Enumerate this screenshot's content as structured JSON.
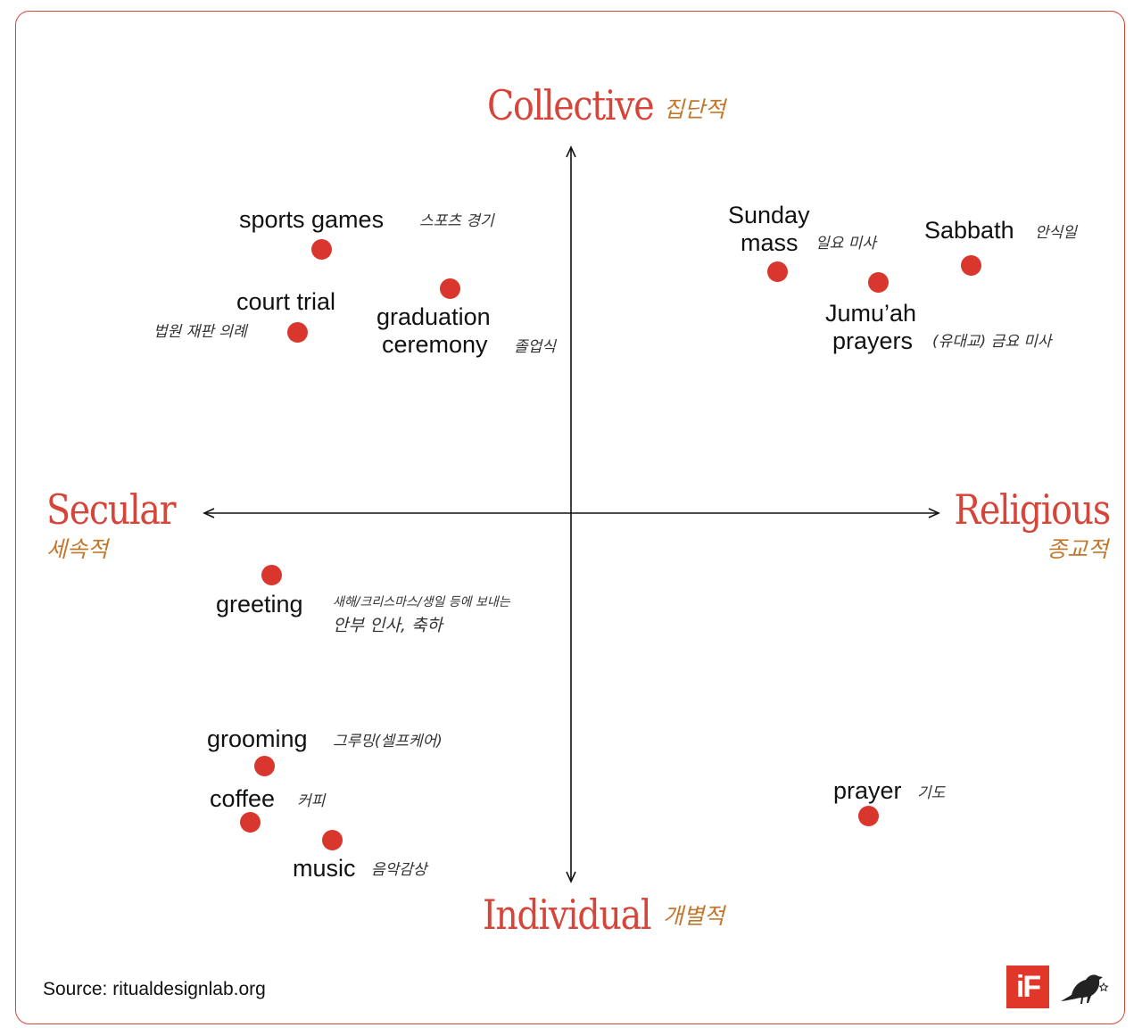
{
  "axes": {
    "top": {
      "label": "Collective",
      "korean": "집단적"
    },
    "bottom": {
      "label": "Individual",
      "korean": "개별적"
    },
    "left": {
      "label": "Secular",
      "korean": "세속적"
    },
    "right": {
      "label": "Religious",
      "korean": "종교적"
    }
  },
  "items": {
    "sports_games": {
      "label": "sports games",
      "korean": "스포츠 경기"
    },
    "court_trial": {
      "label": "court trial",
      "korean": "법원 재판 의례"
    },
    "graduation": {
      "label_line1": "graduation",
      "label_line2": "ceremony",
      "korean": "졸업식"
    },
    "sunday_mass": {
      "label_line1": "Sunday",
      "label_line2": "mass",
      "korean": "일요 미사"
    },
    "sabbath": {
      "label": "Sabbath",
      "korean": "안식일"
    },
    "jumuah": {
      "label_line1": "Jumu’ah",
      "label_line2": "prayers",
      "korean": "(유대교) 금요 미사"
    },
    "greeting": {
      "label": "greeting",
      "korean_line1": "새해/크리스마스/생일 등에 보내는",
      "korean_line2": "안부 인사, 축하"
    },
    "grooming": {
      "label": "grooming",
      "korean": "그루밍(셀프케어)"
    },
    "coffee": {
      "label": "coffee",
      "korean": "커피"
    },
    "music": {
      "label": "music",
      "korean": "음악감상"
    },
    "prayer": {
      "label": "prayer",
      "korean": "기도"
    }
  },
  "footer": {
    "source": "Source: ritualdesignlab.org",
    "logo_text": "iF"
  },
  "colors": {
    "accent": "#d6453a",
    "dot": "#d9362e",
    "korean_axis": "#c2782c",
    "frame": "#d6453a"
  }
}
